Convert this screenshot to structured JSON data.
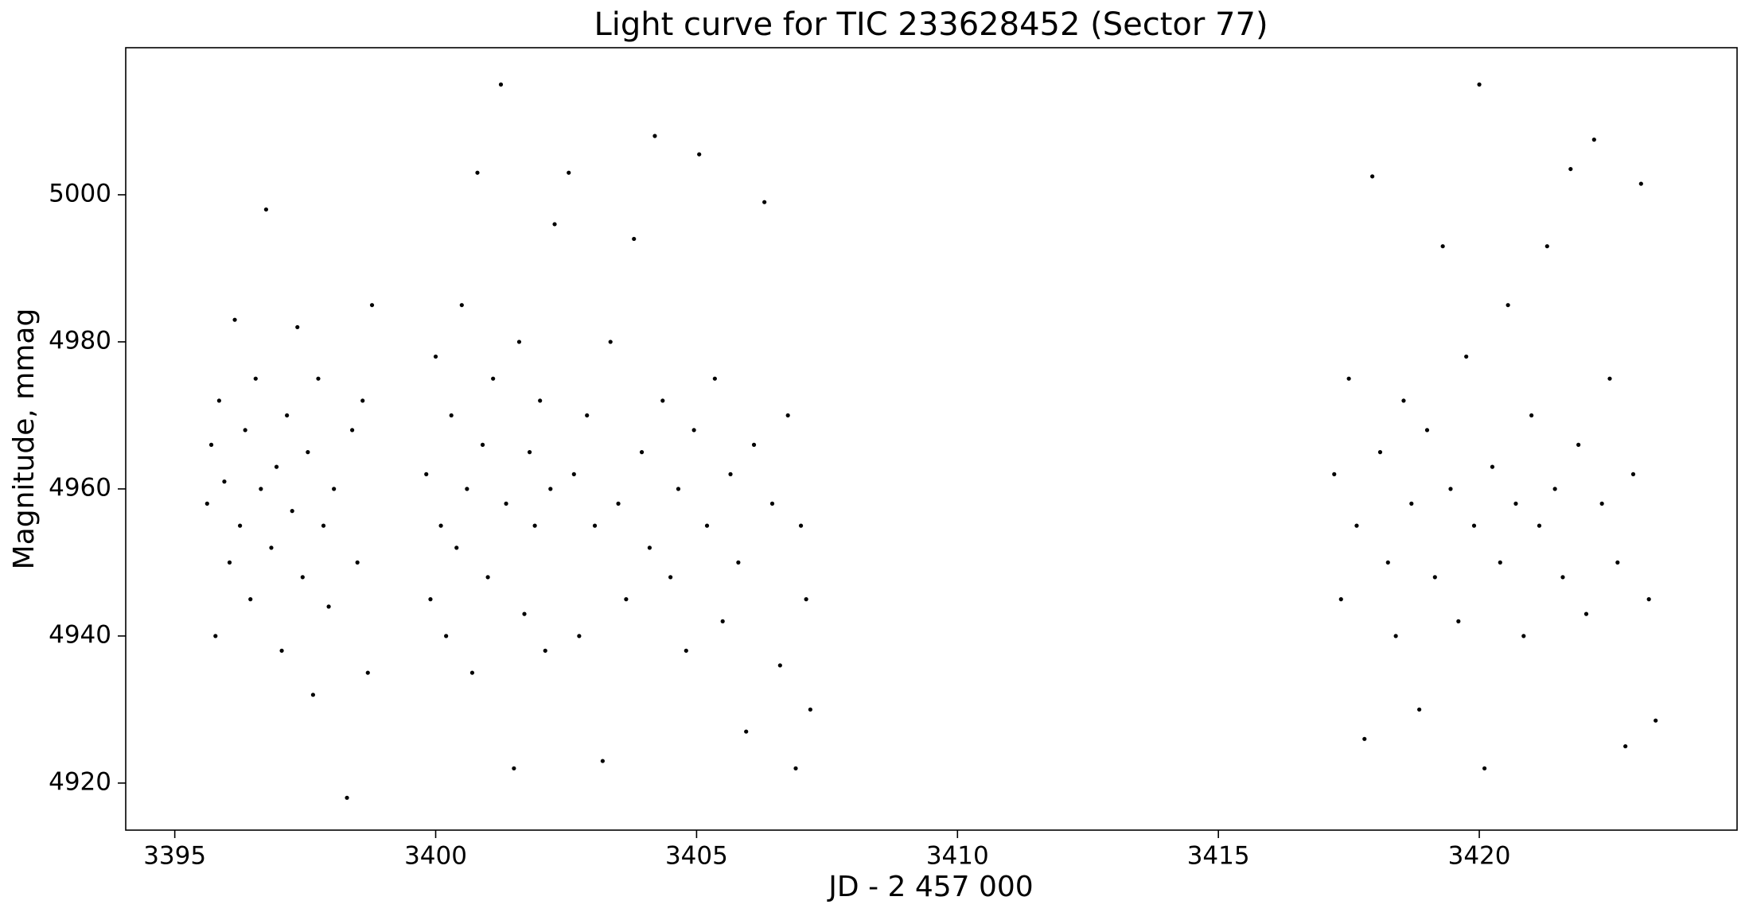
{
  "chart_data": {
    "type": "scatter",
    "title": "Light curve for TIC 233628452 (Sector 77)",
    "x_label": "JD - 2 457 000",
    "y_label": "Magnitude, mmag",
    "color": "#000000",
    "xlim": [
      3394.06,
      3424.94
    ],
    "xticks": [
      3395,
      3400,
      3405,
      3410,
      3415,
      3420
    ],
    "ylim": [
      4913.6,
      5020
    ],
    "yticks": [
      4920,
      4940,
      4960,
      4980,
      5000
    ],
    "x": [
      3395.62,
      3395.7,
      3395.78,
      3395.85,
      3395.95,
      3396.05,
      3396.15,
      3396.25,
      3396.35,
      3396.45,
      3396.55,
      3396.65,
      3396.75,
      3396.85,
      3396.95,
      3397.05,
      3397.15,
      3397.25,
      3397.35,
      3397.45,
      3397.55,
      3397.65,
      3397.75,
      3397.85,
      3397.95,
      3398.05,
      3398.3,
      3398.4,
      3398.5,
      3398.6,
      3398.7,
      3398.78,
      3399.82,
      3399.9,
      3400.0,
      3400.1,
      3400.2,
      3400.3,
      3400.4,
      3400.5,
      3400.6,
      3400.7,
      3400.8,
      3400.9,
      3401.0,
      3401.1,
      3401.25,
      3401.35,
      3401.5,
      3401.6,
      3401.7,
      3401.8,
      3401.9,
      3402.0,
      3402.1,
      3402.2,
      3402.28,
      3402.55,
      3402.65,
      3402.75,
      3402.9,
      3403.05,
      3403.2,
      3403.35,
      3403.5,
      3403.65,
      3403.8,
      3403.95,
      3404.1,
      3404.2,
      3404.35,
      3404.5,
      3404.65,
      3404.8,
      3404.95,
      3405.05,
      3405.2,
      3405.35,
      3405.5,
      3405.65,
      3405.8,
      3405.95,
      3406.1,
      3406.3,
      3406.45,
      3406.6,
      3406.75,
      3406.9,
      3407.0,
      3407.1,
      3407.18,
      3417.22,
      3417.35,
      3417.5,
      3417.65,
      3417.8,
      3417.95,
      3418.1,
      3418.25,
      3418.4,
      3418.55,
      3418.7,
      3418.85,
      3419.0,
      3419.15,
      3419.3,
      3419.45,
      3419.6,
      3419.75,
      3419.9,
      3420.0,
      3420.1,
      3420.25,
      3420.4,
      3420.55,
      3420.7,
      3420.85,
      3421.0,
      3421.15,
      3421.3,
      3421.45,
      3421.6,
      3421.75,
      3421.9,
      3422.05,
      3422.2,
      3422.35,
      3422.5,
      3422.65,
      3422.8,
      3422.95,
      3423.1,
      3423.25,
      3423.38
    ],
    "values": [
      4958,
      4966,
      4940,
      4972,
      4961,
      4950,
      4983,
      4955,
      4968,
      4945,
      4975,
      4960,
      4998,
      4952,
      4963,
      4938,
      4970,
      4957,
      4982,
      4948,
      4965,
      4932,
      4975,
      4955,
      4944,
      4960,
      4918,
      4968,
      4950,
      4972,
      4935,
      4985,
      4962,
      4945,
      4978,
      4955,
      4940,
      4970,
      4952,
      4985,
      4960,
      4935,
      5003,
      4966,
      4948,
      4975,
      5015,
      4958,
      4922,
      4980,
      4943,
      4965,
      4955,
      4972,
      4938,
      4960,
      4996,
      5003,
      4962,
      4940,
      4970,
      4955,
      4923,
      4980,
      4958,
      4945,
      4994,
      4965,
      4952,
      5008,
      4972,
      4948,
      4960,
      4938,
      4968,
      5005.5,
      4955,
      4975,
      4942,
      4962,
      4950,
      4927,
      4966,
      4999,
      4958,
      4936,
      4970,
      4922,
      4955,
      4945,
      4930,
      4962,
      4945,
      4975,
      4955,
      4926,
      5002.5,
      4965,
      4950,
      4940,
      4972,
      4958,
      4930,
      4968,
      4948,
      4993,
      4960,
      4942,
      4978,
      4955,
      5015,
      4922,
      4963,
      4950,
      4985,
      4958,
      4940,
      4970,
      4955,
      4993,
      4960,
      4948,
      5003.5,
      4966,
      4943,
      5007.5,
      4958,
      4975,
      4950,
      4925,
      4962,
      5001.5,
      4945,
      4928.5
    ]
  }
}
